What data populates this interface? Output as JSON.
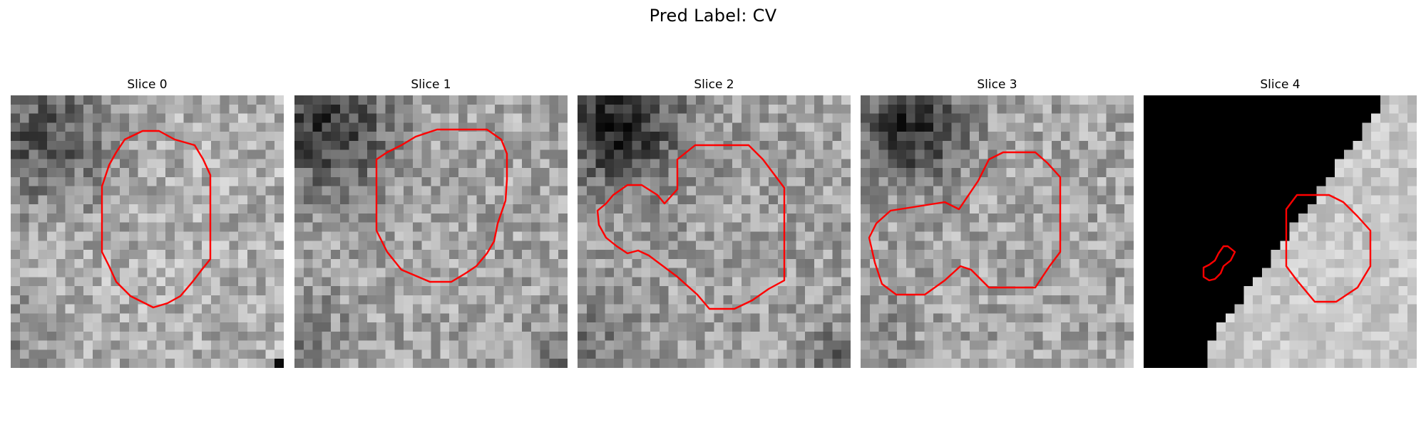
{
  "figure": {
    "title": "Pred Label: CV"
  },
  "panels": [
    {
      "title": "Slice 0",
      "scene": "slice-0"
    },
    {
      "title": "Slice 1",
      "scene": "slice-1"
    },
    {
      "title": "Slice 2",
      "scene": "slice-2"
    },
    {
      "title": "Slice 3",
      "scene": "slice-3"
    },
    {
      "title": "Slice 4",
      "scene": "slice-4"
    }
  ],
  "colors": {
    "contour": "#ff0000",
    "background": "#ffffff"
  }
}
